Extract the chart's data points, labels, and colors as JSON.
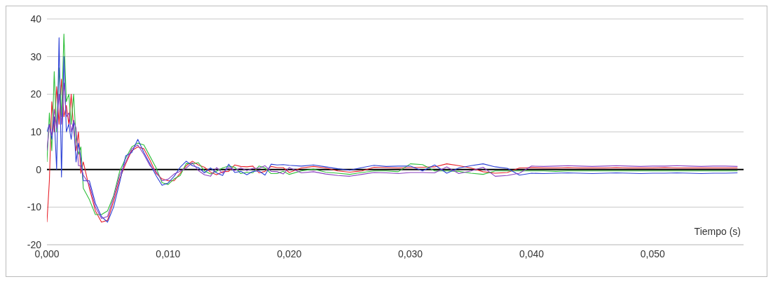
{
  "chart_data": {
    "type": "line",
    "xlabel": "Tiempo (s)",
    "x": [
      0,
      0.0002,
      0.0004,
      0.0006,
      0.0008,
      0.001,
      0.0012,
      0.0014,
      0.0016,
      0.0018,
      0.002,
      0.0022,
      0.0024,
      0.0026,
      0.0028,
      0.003,
      0.0035,
      0.004,
      0.0045,
      0.005,
      0.0055,
      0.006,
      0.0065,
      0.007,
      0.0075,
      0.008,
      0.0085,
      0.009,
      0.0095,
      0.01,
      0.0105,
      0.011,
      0.0115,
      0.012,
      0.0125,
      0.013,
      0.0135,
      0.014,
      0.0145,
      0.015,
      0.0155,
      0.016,
      0.0165,
      0.017,
      0.0175,
      0.018,
      0.0185,
      0.019,
      0.0195,
      0.02,
      0.021,
      0.022,
      0.023,
      0.024,
      0.025,
      0.026,
      0.027,
      0.028,
      0.029,
      0.03,
      0.031,
      0.032,
      0.033,
      0.034,
      0.035,
      0.036,
      0.037,
      0.038,
      0.039,
      0.04,
      0.041,
      0.042,
      0.043,
      0.044,
      0.045,
      0.046,
      0.047,
      0.048,
      0.049,
      0.05,
      0.051,
      0.052,
      0.053,
      0.054,
      0.055,
      0.056,
      0.057
    ],
    "series": [
      {
        "color": "#e8212a",
        "values": [
          -14,
          -3,
          18,
          10,
          22,
          12,
          24,
          14,
          17,
          12,
          20,
          11,
          5,
          10,
          -1,
          2,
          -5,
          -11,
          -14,
          -13.5,
          -8.5,
          -2.5,
          1.5,
          5,
          6,
          5.5,
          2.5,
          -1,
          -2.5,
          -3,
          -3,
          -1,
          1,
          2.2,
          1.2,
          0.6,
          -0.7,
          -1.4,
          -0.6,
          -0.5,
          1.2,
          0.8,
          0.7,
          0.9,
          -0.9,
          -0.5,
          0.8,
          0.5,
          0.5,
          -0.8,
          0.4,
          0.8,
          0.4,
          -0.4,
          -0.7,
          -0.4,
          0.6,
          0.5,
          0.4,
          0.5,
          0.6,
          0.7,
          1.5,
          1,
          0.4,
          -0.6,
          -1,
          -0.8,
          0.4,
          0.5,
          0.4,
          0.4,
          0.5,
          0.4,
          0.4,
          0.4,
          0.5,
          0.4,
          0.4,
          0.4,
          0.5,
          0.4,
          0.4,
          0.4,
          0.4,
          0.4,
          0.4
        ]
      },
      {
        "color": "#2fbf3a",
        "values": [
          2,
          15,
          5,
          26,
          10,
          27,
          14,
          36,
          18,
          20,
          12,
          20,
          8,
          4,
          6,
          -5,
          -8,
          -12,
          -12,
          -11,
          -7,
          -0.5,
          3,
          6,
          7,
          6.5,
          3.5,
          0.5,
          -3.5,
          -4,
          -2.5,
          -1.6,
          1.6,
          1.5,
          1.8,
          -0.4,
          -1.2,
          -0.5,
          0.4,
          0.9,
          0.6,
          -1.1,
          -0.7,
          -0.9,
          0.9,
          0.4,
          -1.1,
          -1.1,
          -0.5,
          -1.3,
          -0.4,
          0.1,
          -0.7,
          -1,
          -1.3,
          -0.8,
          -0.4,
          -0.4,
          -0.6,
          1.5,
          1.3,
          -0.4,
          -0.4,
          -0.5,
          -1,
          -1.3,
          -0.4,
          -0.4,
          -0.4,
          -0.4,
          -0.4,
          -0.5,
          -0.4,
          -0.4,
          -0.4,
          -0.4,
          -0.4,
          -0.4,
          -0.4,
          -0.4,
          -0.4,
          -0.4,
          -0.4,
          -0.4,
          -0.4,
          -0.4,
          -0.4
        ]
      },
      {
        "color": "#2a3fd6",
        "values": [
          10,
          12,
          8,
          14,
          0,
          35,
          -2,
          30,
          10,
          12,
          8,
          13,
          2,
          7,
          3,
          -3,
          -3,
          -9,
          -12.5,
          -14,
          -10,
          -3.5,
          3.6,
          4.5,
          8,
          4.5,
          1.5,
          -1.6,
          -4.2,
          -3.6,
          -1.8,
          0.6,
          2.2,
          1,
          0.5,
          -0.9,
          0.4,
          -0.9,
          -1.6,
          1.4,
          -0.8,
          -0.5,
          -1.4,
          -0.5,
          -0.4,
          -1.5,
          1.4,
          1.2,
          1.3,
          1.1,
          0.9,
          1.2,
          0.7,
          0.2,
          -0.2,
          0.5,
          1.1,
          0.8,
          0.9,
          0.9,
          -0.4,
          1.2,
          -1,
          0.4,
          1,
          1.5,
          0.7,
          0.3,
          -1.5,
          -1,
          -1.1,
          -1,
          -0.9,
          -1,
          -1.1,
          -1,
          -0.9,
          -1,
          -1.1,
          -1,
          -1,
          -0.9,
          -1,
          -1.1,
          -1,
          -1,
          -0.9
        ]
      },
      {
        "color": "#8a3fbf",
        "values": [
          5,
          12,
          9,
          16,
          11,
          20,
          12,
          23,
          14,
          15,
          10,
          13,
          11,
          1,
          1,
          -1.5,
          -4,
          -10,
          -13,
          -12.5,
          -7.5,
          -1.5,
          2,
          5.5,
          6.5,
          4,
          1,
          -0.5,
          -3,
          -2.6,
          -1.2,
          -0.5,
          0.4,
          1.8,
          -0.3,
          -1.4,
          -1.8,
          0.5,
          -1,
          0.5,
          -0.3,
          0.4,
          -0.3,
          0.3,
          0.3,
          1,
          -0.5,
          -0.6,
          -1.2,
          0.5,
          -0.9,
          -0.6,
          -1.2,
          -1.6,
          -1.8,
          -1.3,
          -0.8,
          -0.9,
          -1.1,
          -0.8,
          -0.8,
          -0.9,
          0.7,
          -1.1,
          -0.4,
          0.6,
          -1.8,
          -1.6,
          -1,
          0.9,
          0.8,
          0.9,
          1,
          0.9,
          0.8,
          0.9,
          1,
          0.9,
          0.8,
          0.9,
          0.9,
          1,
          0.9,
          0.8,
          0.9,
          0.9,
          0.8
        ]
      }
    ],
    "xlim": [
      0,
      0.0575
    ],
    "xticks": [
      {
        "value": 0,
        "label": "0,000"
      },
      {
        "value": 0.01,
        "label": "0,010"
      },
      {
        "value": 0.02,
        "label": "0,020"
      },
      {
        "value": 0.03,
        "label": "0,030"
      },
      {
        "value": 0.04,
        "label": "0,040"
      },
      {
        "value": 0.05,
        "label": "0,050"
      }
    ],
    "ylim": [
      -20,
      40
    ],
    "yticks": [
      -20,
      -10,
      0,
      10,
      20,
      30,
      40
    ],
    "grid": "y",
    "marker": "none",
    "line_style": "solid",
    "ref_lines": [
      {
        "axis": "y",
        "value": 0,
        "color": "#000000"
      }
    ]
  }
}
